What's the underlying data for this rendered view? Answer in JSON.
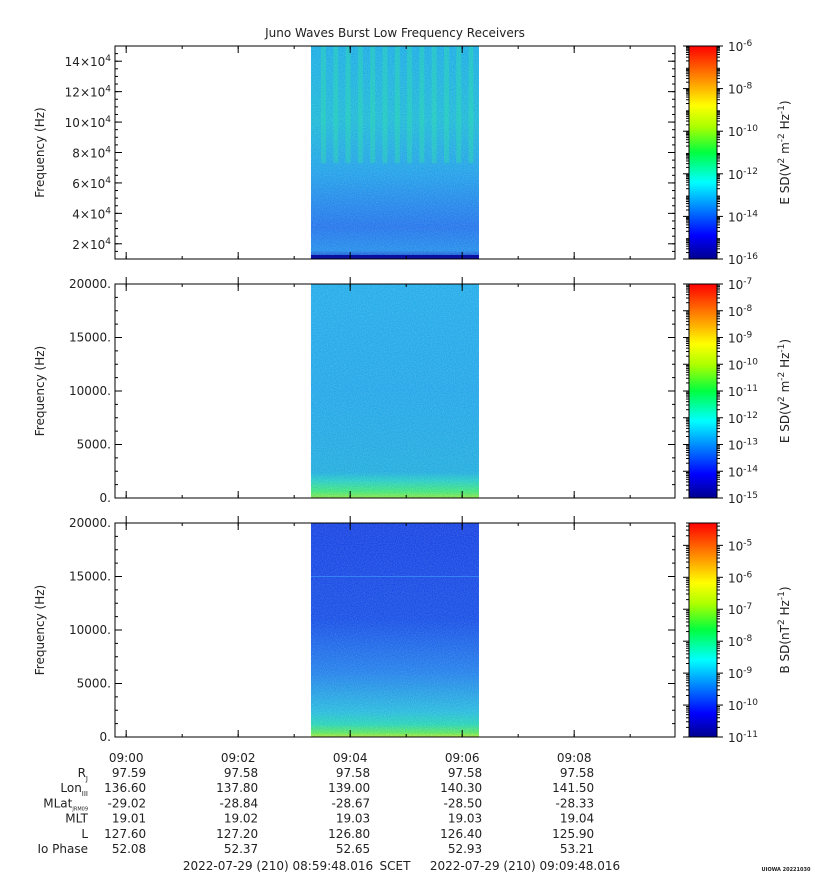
{
  "title": "Juno Waves Burst Low Frequency Receivers",
  "colors": {
    "background": "#ffffff",
    "axis": "#000000",
    "text": "#222222"
  },
  "chart_data": [
    {
      "type": "heatmap",
      "panel": "top",
      "ylabel": "Frequency (Hz)",
      "yticks": [
        {
          "base": "2×10",
          "exp": "4",
          "value": 20000
        },
        {
          "base": "4×10",
          "exp": "4",
          "value": 40000
        },
        {
          "base": "6×10",
          "exp": "4",
          "value": 60000
        },
        {
          "base": "8×10",
          "exp": "4",
          "value": 80000
        },
        {
          "base": "10×10",
          "exp": "4",
          "value": 100000
        },
        {
          "base": "12×10",
          "exp": "4",
          "value": 120000
        },
        {
          "base": "14×10",
          "exp": "4",
          "value": 140000
        }
      ],
      "ylim": [
        10000,
        150000
      ],
      "data_time_range": [
        "09:03.3",
        "09:06.3"
      ],
      "colorbar": {
        "label": "E SD(V² m⁻² Hz⁻¹)",
        "label_parts": [
          "E SD(V",
          "2",
          " m",
          "-2",
          " Hz",
          "-1",
          ")"
        ],
        "scale": "log",
        "range_exp": [
          -16,
          -6
        ],
        "ticks": [
          {
            "base": "10",
            "exp": "-6"
          },
          {
            "base": "10",
            "exp": "-8"
          },
          {
            "base": "10",
            "exp": "-10"
          },
          {
            "base": "10",
            "exp": "-12"
          },
          {
            "base": "10",
            "exp": "-14"
          },
          {
            "base": "10",
            "exp": "-16"
          }
        ]
      }
    },
    {
      "type": "heatmap",
      "panel": "middle",
      "ylabel": "Frequency (Hz)",
      "yticks": [
        {
          "label": "0.",
          "value": 0
        },
        {
          "label": "5000.",
          "value": 5000
        },
        {
          "label": "10000.",
          "value": 10000
        },
        {
          "label": "15000.",
          "value": 15000
        },
        {
          "label": "20000.",
          "value": 20000
        }
      ],
      "ylim": [
        0,
        20000
      ],
      "data_time_range": [
        "09:03.3",
        "09:06.3"
      ],
      "colorbar": {
        "label": "E SD(V² m⁻² Hz⁻¹)",
        "label_parts": [
          "E SD(V",
          "2",
          " m",
          "-2",
          " Hz",
          "-1",
          ")"
        ],
        "scale": "log",
        "range_exp": [
          -15,
          -7
        ],
        "ticks": [
          {
            "base": "10",
            "exp": "-7"
          },
          {
            "base": "10",
            "exp": "-8"
          },
          {
            "base": "10",
            "exp": "-9"
          },
          {
            "base": "10",
            "exp": "-10"
          },
          {
            "base": "10",
            "exp": "-11"
          },
          {
            "base": "10",
            "exp": "-12"
          },
          {
            "base": "10",
            "exp": "-13"
          },
          {
            "base": "10",
            "exp": "-14"
          },
          {
            "base": "10",
            "exp": "-15"
          }
        ]
      }
    },
    {
      "type": "heatmap",
      "panel": "bottom",
      "ylabel": "Frequency (Hz)",
      "yticks": [
        {
          "label": "0.",
          "value": 0
        },
        {
          "label": "5000.",
          "value": 5000
        },
        {
          "label": "10000.",
          "value": 10000
        },
        {
          "label": "15000.",
          "value": 15000
        },
        {
          "label": "20000.",
          "value": 20000
        }
      ],
      "ylim": [
        0,
        20000
      ],
      "data_time_range": [
        "09:03.3",
        "09:06.3"
      ],
      "colorbar": {
        "label": "B SD(nT² Hz⁻¹)",
        "label_parts": [
          "B SD(nT",
          "2",
          " Hz",
          "-1",
          ")"
        ],
        "scale": "log",
        "range_exp": [
          -11,
          -4.3
        ],
        "ticks": [
          {
            "base": "10",
            "exp": "-5",
            "value": -5
          },
          {
            "base": "10",
            "exp": "-6",
            "value": -6
          },
          {
            "base": "10",
            "exp": "-7",
            "value": -7
          },
          {
            "base": "10",
            "exp": "-8",
            "value": -8
          },
          {
            "base": "10",
            "exp": "-9",
            "value": -9
          },
          {
            "base": "10",
            "exp": "-10",
            "value": -10
          },
          {
            "base": "10",
            "exp": "-11",
            "value": -11
          }
        ]
      }
    }
  ],
  "time_axis": {
    "ticks": [
      {
        "label": "09:00",
        "minute": 0
      },
      {
        "label": "09:02",
        "minute": 2
      },
      {
        "label": "09:04",
        "minute": 4
      },
      {
        "label": "09:06",
        "minute": 6
      },
      {
        "label": "09:08",
        "minute": 8
      }
    ],
    "start_minute": -0.1997,
    "end_minute": 9.8003
  },
  "ephemeris": {
    "rows": [
      {
        "label": "R",
        "sub": "J",
        "values": [
          "97.59",
          "97.58",
          "97.58",
          "97.58",
          "97.58"
        ]
      },
      {
        "label": "Lon",
        "sub": "III",
        "values": [
          "136.60",
          "137.80",
          "139.00",
          "140.30",
          "141.50"
        ]
      },
      {
        "label": "MLat",
        "sub": "JRM09",
        "values": [
          "-29.02",
          "-28.84",
          "-28.67",
          "-28.50",
          "-28.33"
        ]
      },
      {
        "label": "MLT",
        "sub": "",
        "values": [
          "19.01",
          "19.02",
          "19.03",
          "19.03",
          "19.04"
        ]
      },
      {
        "label": "L",
        "sub": "",
        "values": [
          "127.60",
          "127.20",
          "126.80",
          "126.40",
          "125.90"
        ]
      },
      {
        "label": "Io Phase",
        "sub": "",
        "values": [
          "52.08",
          "52.37",
          "52.65",
          "52.93",
          "53.21"
        ]
      }
    ]
  },
  "footer": {
    "start": "2022-07-29 (210) 08:59:48.016",
    "frame": "SCET",
    "end": "2022-07-29 (210) 09:09:48.016",
    "stamp": "UIOWA 20221030"
  }
}
